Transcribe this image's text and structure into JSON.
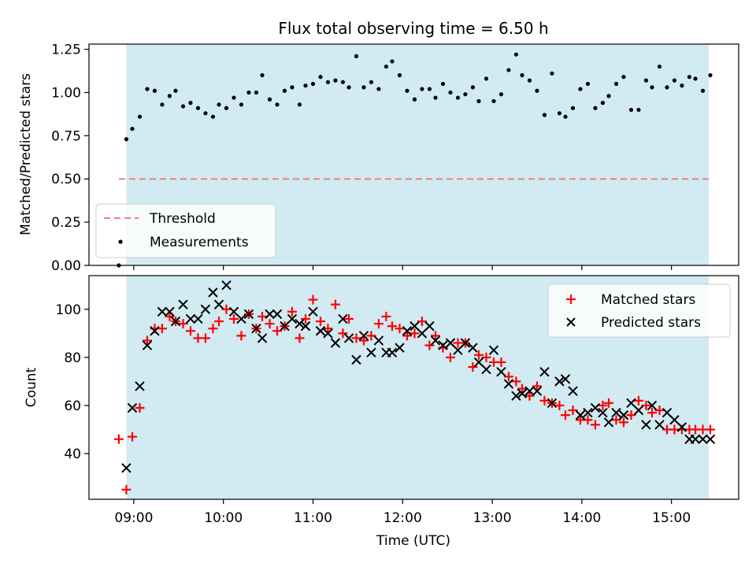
{
  "chart_data": [
    {
      "type": "scatter",
      "title": "Flux total observing time = 6.50 h",
      "xlabel": "",
      "ylabel": "Matched/Predicted stars",
      "xlim": [
        "08:30",
        "15:45"
      ],
      "ylim": [
        0,
        1.28
      ],
      "x_ticks": [
        "09:00",
        "10:00",
        "11:00",
        "12:00",
        "13:00",
        "14:00",
        "15:00"
      ],
      "y_ticks": [
        "0.00",
        "0.25",
        "0.50",
        "0.75",
        "1.00",
        "1.25"
      ],
      "shaded_span": {
        "x": [
          "08:55",
          "15:25"
        ],
        "color": "#add8e6"
      },
      "threshold": {
        "name": "Threshold",
        "y": 0.5,
        "x": [
          "08:50",
          "15:25"
        ],
        "color": "#f08080",
        "style": "dashed"
      },
      "legend_position": "lower-left",
      "grid": false,
      "series": [
        {
          "name": "Measurements",
          "marker": "dot",
          "color": "#000000",
          "x": [
            "08:50",
            "08:55",
            "08:59",
            "09:04",
            "09:09",
            "09:14",
            "09:19",
            "09:24",
            "09:28",
            "09:33",
            "09:38",
            "09:43",
            "09:48",
            "09:53",
            "09:57",
            "10:02",
            "10:07",
            "10:12",
            "10:17",
            "10:22",
            "10:26",
            "10:31",
            "10:36",
            "10:41",
            "10:46",
            "10:51",
            "10:55",
            "11:00",
            "11:05",
            "11:10",
            "11:15",
            "11:20",
            "11:24",
            "11:29",
            "11:34",
            "11:39",
            "11:44",
            "11:49",
            "11:53",
            "11:58",
            "12:03",
            "12:08",
            "12:13",
            "12:18",
            "12:22",
            "12:27",
            "12:32",
            "12:37",
            "12:42",
            "12:47",
            "12:51",
            "12:56",
            "13:01",
            "13:06",
            "13:11",
            "13:16",
            "13:20",
            "13:25",
            "13:30",
            "13:35",
            "13:40",
            "13:45",
            "13:49",
            "13:54",
            "13:59",
            "14:04",
            "14:09",
            "14:14",
            "14:18",
            "14:23",
            "14:28",
            "14:33",
            "14:38",
            "14:43",
            "14:47",
            "14:52",
            "14:57",
            "15:02",
            "15:07",
            "15:12",
            "15:16",
            "15:21",
            "15:26"
          ],
          "y": [
            0.0,
            0.73,
            0.79,
            0.86,
            1.02,
            1.01,
            0.93,
            0.98,
            1.01,
            0.92,
            0.94,
            0.91,
            0.88,
            0.86,
            0.93,
            0.91,
            0.97,
            0.93,
            1.0,
            1.0,
            1.1,
            0.96,
            0.93,
            1.01,
            1.03,
            0.93,
            1.04,
            1.05,
            1.09,
            1.06,
            1.07,
            1.06,
            1.03,
            1.21,
            1.03,
            1.06,
            1.02,
            1.15,
            1.18,
            1.1,
            1.01,
            0.96,
            1.02,
            1.02,
            0.97,
            1.05,
            1.0,
            0.97,
            0.99,
            1.03,
            0.95,
            1.08,
            0.95,
            0.99,
            1.13,
            1.22,
            1.1,
            1.07,
            1.01,
            0.87,
            1.11,
            0.88,
            0.86,
            0.91,
            1.02,
            1.05,
            0.91,
            0.94,
            0.98,
            1.05,
            1.09,
            0.9,
            0.9,
            1.07,
            1.03,
            1.15,
            1.03,
            1.07,
            1.04,
            1.09,
            1.08,
            1.01,
            1.1
          ]
        }
      ]
    },
    {
      "type": "scatter",
      "title": "",
      "xlabel": "Time (UTC)",
      "ylabel": "Count",
      "xlim": [
        "08:30",
        "15:45"
      ],
      "ylim": [
        21,
        114
      ],
      "x_ticks": [
        "09:00",
        "10:00",
        "11:00",
        "12:00",
        "13:00",
        "14:00",
        "15:00"
      ],
      "y_ticks": [
        "40",
        "60",
        "80",
        "100"
      ],
      "shaded_span": {
        "x": [
          "08:55",
          "15:25"
        ],
        "color": "#add8e6"
      },
      "legend_position": "upper-right",
      "grid": false,
      "series": [
        {
          "name": "Matched stars",
          "marker": "plus",
          "color": "#ff0000",
          "x": [
            "08:50",
            "08:55",
            "08:59",
            "09:04",
            "09:09",
            "09:14",
            "09:19",
            "09:24",
            "09:28",
            "09:33",
            "09:38",
            "09:43",
            "09:48",
            "09:53",
            "09:57",
            "10:02",
            "10:07",
            "10:12",
            "10:17",
            "10:22",
            "10:26",
            "10:31",
            "10:36",
            "10:41",
            "10:46",
            "10:51",
            "10:55",
            "11:00",
            "11:05",
            "11:10",
            "11:15",
            "11:20",
            "11:24",
            "11:29",
            "11:34",
            "11:39",
            "11:44",
            "11:49",
            "11:53",
            "11:58",
            "12:03",
            "12:08",
            "12:13",
            "12:18",
            "12:22",
            "12:27",
            "12:32",
            "12:37",
            "12:42",
            "12:47",
            "12:51",
            "12:56",
            "13:01",
            "13:06",
            "13:11",
            "13:16",
            "13:20",
            "13:25",
            "13:30",
            "13:35",
            "13:40",
            "13:45",
            "13:49",
            "13:54",
            "13:59",
            "14:04",
            "14:09",
            "14:14",
            "14:18",
            "14:23",
            "14:28",
            "14:33",
            "14:38",
            "14:43",
            "14:47",
            "14:52",
            "14:57",
            "15:02",
            "15:07",
            "15:12",
            "15:16",
            "15:21",
            "15:26"
          ],
          "y": [
            46,
            25,
            47,
            59,
            87,
            92,
            92,
            97,
            95,
            94,
            91,
            88,
            88,
            92,
            95,
            100,
            96,
            89,
            98,
            92,
            97,
            94,
            91,
            93,
            99,
            88,
            96,
            104,
            95,
            92,
            102,
            90,
            96,
            88,
            87,
            89,
            94,
            97,
            93,
            92,
            89,
            90,
            95,
            85,
            89,
            84,
            80,
            86,
            86,
            76,
            81,
            80,
            78,
            78,
            72,
            70,
            67,
            64,
            68,
            62,
            61,
            60,
            56,
            58,
            54,
            54,
            52,
            60,
            61,
            54,
            53,
            56,
            62,
            60,
            57,
            58,
            50,
            50,
            50,
            50,
            50,
            50,
            50
          ]
        },
        {
          "name": "Predicted stars",
          "marker": "x",
          "color": "#000000",
          "x": [
            "08:55",
            "08:59",
            "09:04",
            "09:09",
            "09:14",
            "09:19",
            "09:24",
            "09:28",
            "09:33",
            "09:38",
            "09:43",
            "09:48",
            "09:53",
            "09:57",
            "10:02",
            "10:07",
            "10:12",
            "10:17",
            "10:22",
            "10:26",
            "10:31",
            "10:36",
            "10:41",
            "10:46",
            "10:51",
            "10:55",
            "11:00",
            "11:05",
            "11:10",
            "11:15",
            "11:20",
            "11:24",
            "11:29",
            "11:34",
            "11:39",
            "11:44",
            "11:49",
            "11:53",
            "11:58",
            "12:03",
            "12:08",
            "12:13",
            "12:18",
            "12:22",
            "12:27",
            "12:32",
            "12:37",
            "12:42",
            "12:47",
            "12:51",
            "12:56",
            "13:01",
            "13:06",
            "13:11",
            "13:16",
            "13:20",
            "13:25",
            "13:30",
            "13:35",
            "13:40",
            "13:45",
            "13:49",
            "13:54",
            "13:59",
            "14:04",
            "14:09",
            "14:14",
            "14:18",
            "14:23",
            "14:28",
            "14:33",
            "14:38",
            "14:43",
            "14:47",
            "14:52",
            "14:57",
            "15:02",
            "15:07",
            "15:12",
            "15:16",
            "15:21",
            "15:26"
          ],
          "y": [
            34,
            59,
            68,
            85,
            91,
            99,
            99,
            95,
            102,
            96,
            96,
            100,
            107,
            102,
            110,
            99,
            96,
            98,
            92,
            88,
            98,
            98,
            93,
            96,
            94,
            93,
            99,
            91,
            90,
            86,
            96,
            88,
            79,
            89,
            82,
            87,
            82,
            82,
            84,
            91,
            93,
            90,
            93,
            87,
            85,
            86,
            83,
            86,
            84,
            78,
            75,
            83,
            74,
            69,
            64,
            65,
            66,
            66,
            74,
            61,
            70,
            71,
            66,
            56,
            57,
            59,
            57,
            53,
            57,
            56,
            61,
            58,
            52,
            60,
            52,
            57,
            54,
            51,
            46,
            46,
            46,
            46
          ]
        }
      ]
    }
  ]
}
